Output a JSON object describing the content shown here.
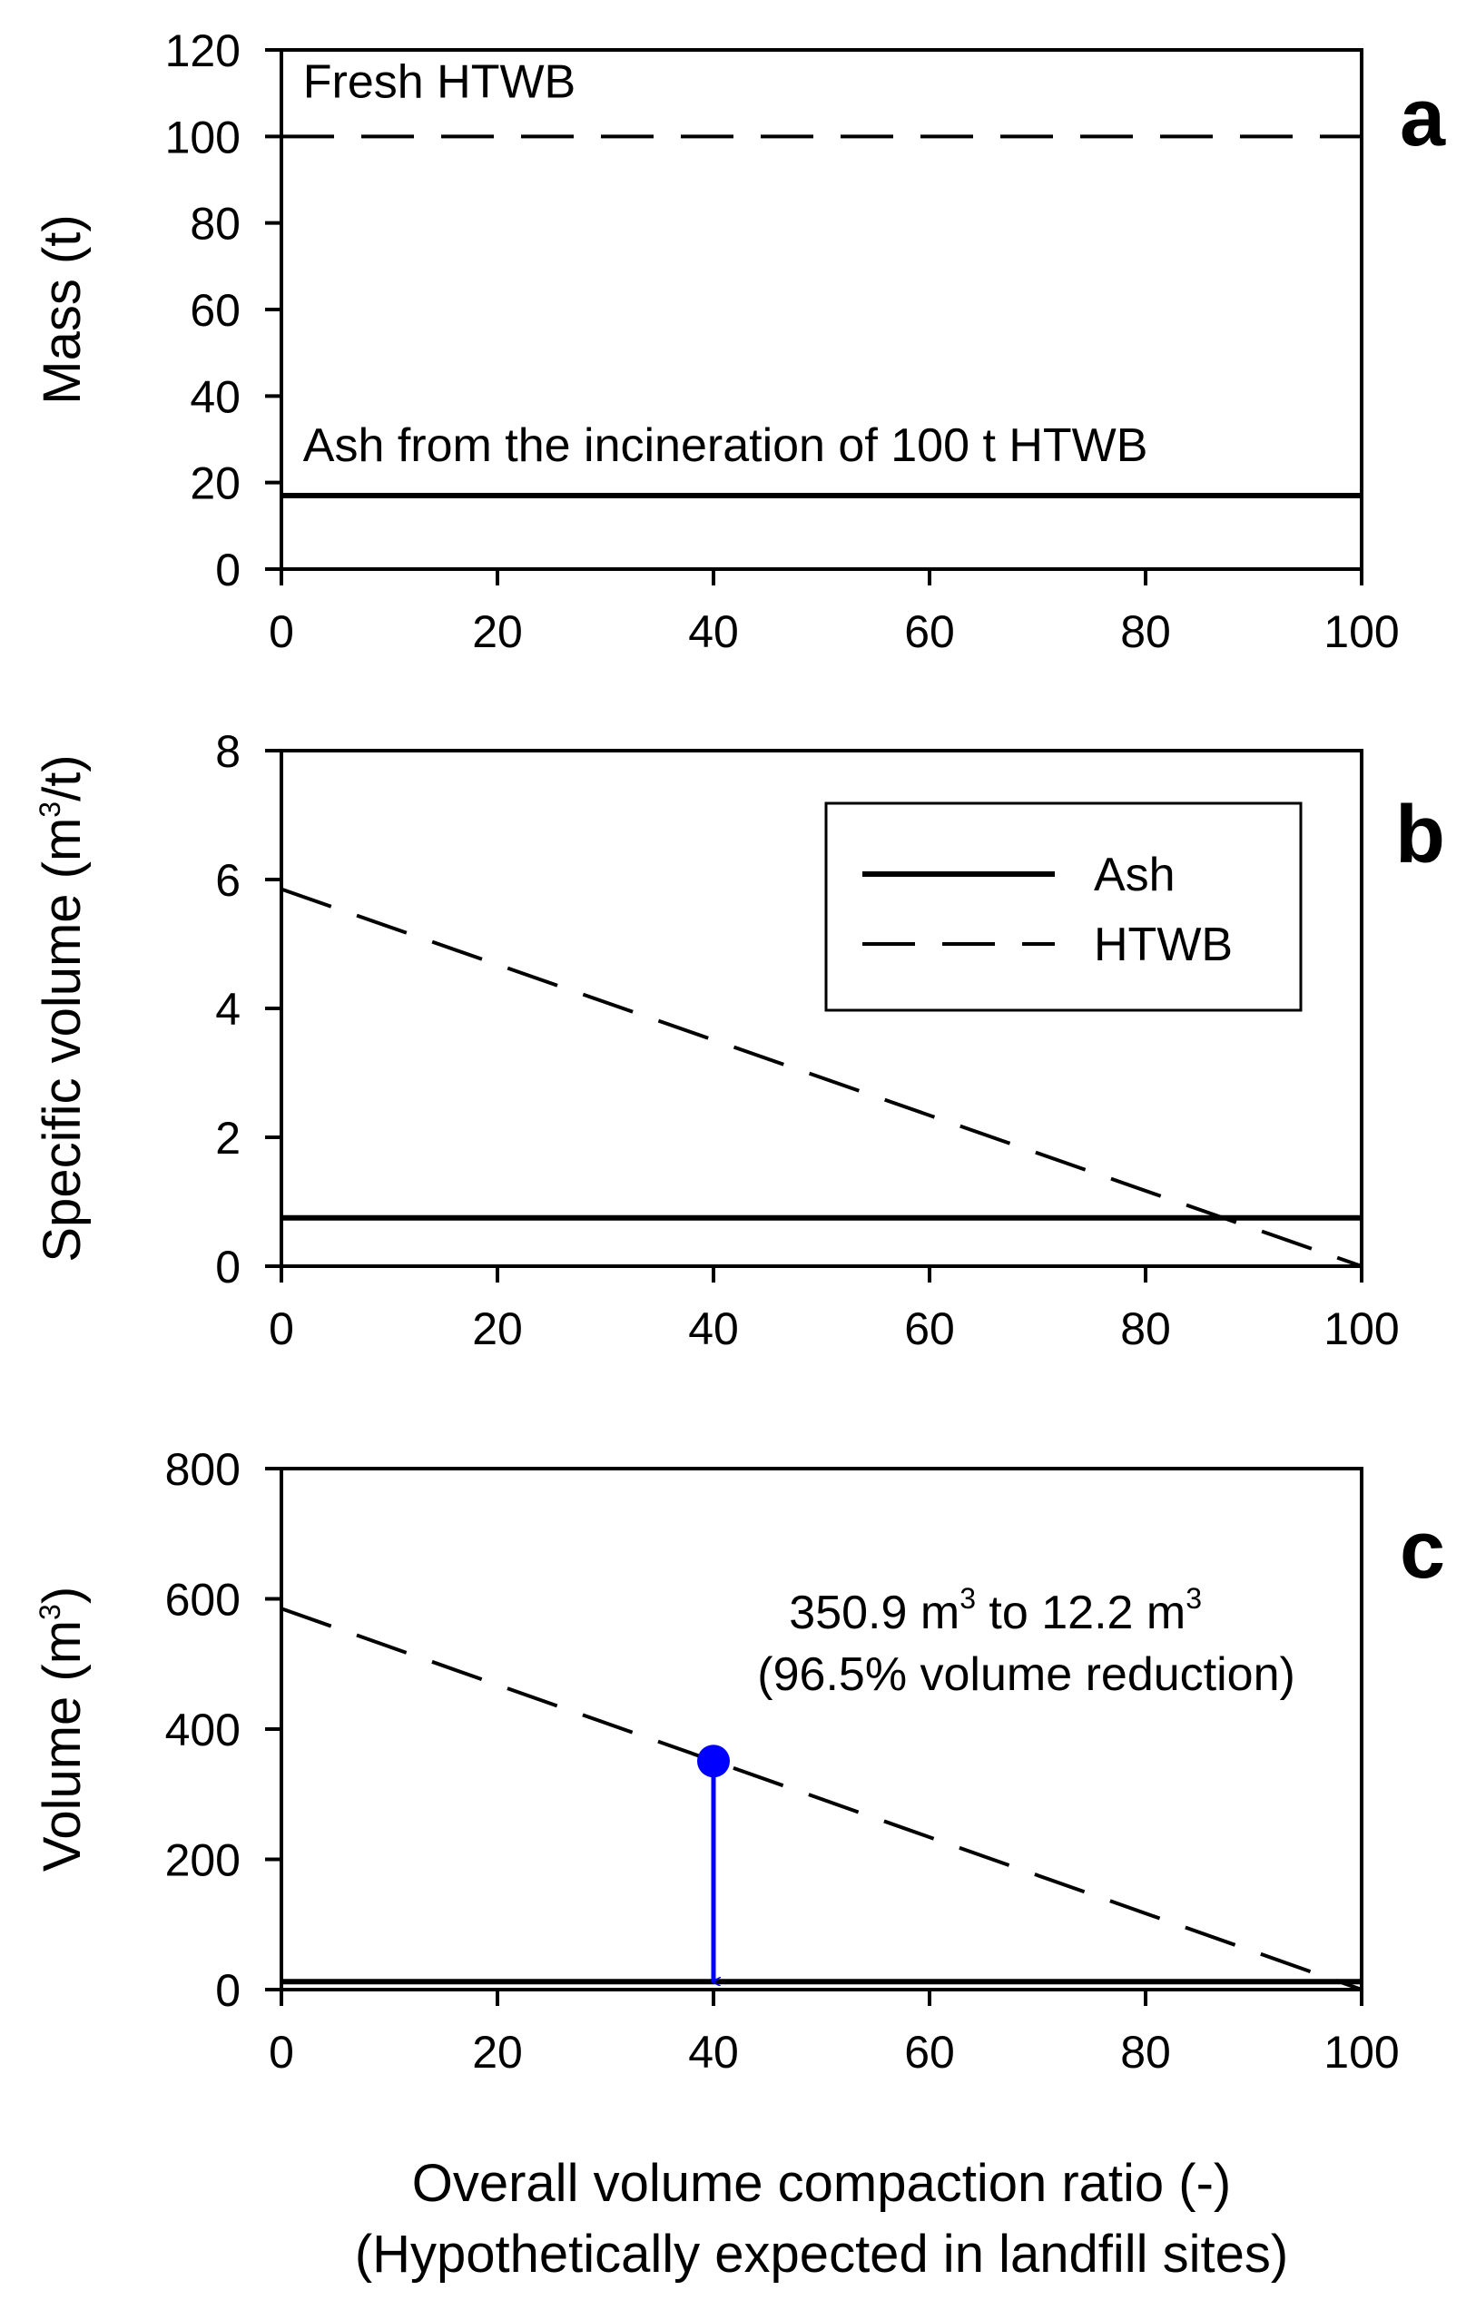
{
  "colors": {
    "line": "#000000",
    "highlight": "#0000ff",
    "background": "#ffffff"
  },
  "chart_data": [
    {
      "id": "a",
      "panel_letter": "a",
      "type": "line",
      "ylabel": "Mass (t)",
      "xlim": [
        0,
        100
      ],
      "ylim": [
        0,
        120
      ],
      "xticks": [
        0,
        20,
        40,
        60,
        80,
        100
      ],
      "yticks": [
        0,
        20,
        40,
        60,
        80,
        100,
        120
      ],
      "series": [
        {
          "name": "Fresh HTWB",
          "style": "dashed",
          "x": [
            0,
            100
          ],
          "y": [
            100,
            100
          ]
        },
        {
          "name": "Ash",
          "style": "solid",
          "x": [
            0,
            100
          ],
          "y": [
            17,
            17
          ]
        }
      ],
      "annotations": [
        {
          "text": "Fresh HTWB",
          "x": 2,
          "y": 109
        },
        {
          "text": "Ash from the incineration of 100 t HTWB",
          "x": 2,
          "y": 25
        }
      ]
    },
    {
      "id": "b",
      "panel_letter": "b",
      "type": "line",
      "ylabel_main": "Specific volume (m",
      "ylabel_sup": "3",
      "ylabel_tail": "/t)",
      "xlim": [
        0,
        100
      ],
      "ylim": [
        0,
        8
      ],
      "xticks": [
        0,
        20,
        40,
        60,
        80,
        100
      ],
      "yticks": [
        0,
        2,
        4,
        6,
        8
      ],
      "series": [
        {
          "name": "Ash",
          "style": "solid",
          "x": [
            0,
            100
          ],
          "y": [
            0.75,
            0.75
          ]
        },
        {
          "name": "HTWB",
          "style": "dashed",
          "x": [
            0,
            100
          ],
          "y": [
            5.85,
            0
          ]
        }
      ],
      "legend": {
        "position": "top-right",
        "entries": [
          "Ash",
          "HTWB"
        ]
      }
    },
    {
      "id": "c",
      "panel_letter": "c",
      "type": "line",
      "ylabel_main": "Volume (m",
      "ylabel_sup": "3",
      "ylabel_tail": ")",
      "xlim": [
        0,
        100
      ],
      "ylim": [
        0,
        800
      ],
      "xticks": [
        0,
        20,
        40,
        60,
        80,
        100
      ],
      "yticks": [
        0,
        200,
        400,
        600,
        800
      ],
      "series": [
        {
          "name": "HTWB",
          "style": "dashed",
          "x": [
            0,
            100
          ],
          "y": [
            585,
            0
          ]
        },
        {
          "name": "Ash",
          "style": "solid",
          "x": [
            0,
            100
          ],
          "y": [
            12.2,
            12.2
          ]
        }
      ],
      "highlight_point": {
        "x": 40,
        "y": 350.9,
        "arrow_to_y": 12.2
      },
      "annotation": {
        "line1_a": "350.9 m",
        "line1_sup1": "3",
        "line1_b": " to 12.2 m",
        "line1_sup2": "3",
        "line2": "(96.5% volume reduction)",
        "x": 47,
        "y1": 555,
        "y2": 460
      },
      "xlabel_line1": "Overall volume compaction ratio (-)",
      "xlabel_line2": "(Hypothetically expected in landfill sites)"
    }
  ]
}
